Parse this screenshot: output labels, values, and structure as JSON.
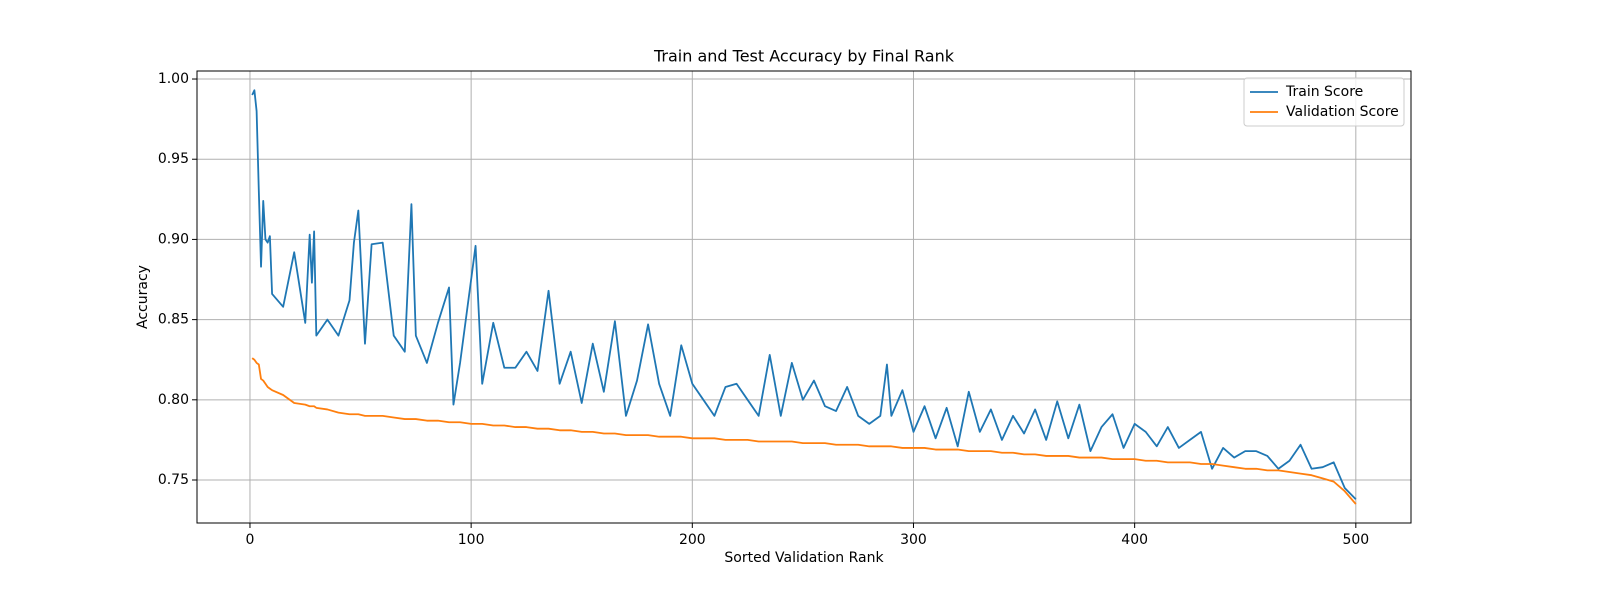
{
  "chart_data": {
    "type": "line",
    "title": "Train and Test Accuracy by Final Rank",
    "x_label": "Sorted Validation Rank",
    "y_label": "Accuracy",
    "x": [
      1,
      2,
      3,
      4,
      5,
      6,
      7,
      8,
      9,
      10,
      15,
      20,
      25,
      27,
      28,
      29,
      30,
      35,
      40,
      45,
      47,
      49,
      52,
      55,
      60,
      65,
      70,
      73,
      75,
      80,
      85,
      90,
      92,
      95,
      100,
      102,
      105,
      110,
      115,
      120,
      125,
      130,
      135,
      140,
      145,
      150,
      155,
      160,
      165,
      170,
      175,
      180,
      185,
      190,
      195,
      200,
      205,
      210,
      215,
      220,
      225,
      230,
      235,
      240,
      245,
      250,
      255,
      260,
      265,
      270,
      275,
      280,
      285,
      288,
      290,
      295,
      300,
      305,
      310,
      315,
      320,
      325,
      330,
      335,
      340,
      345,
      350,
      355,
      360,
      365,
      370,
      375,
      380,
      385,
      390,
      395,
      400,
      405,
      410,
      415,
      420,
      425,
      430,
      435,
      440,
      445,
      450,
      455,
      460,
      465,
      470,
      475,
      480,
      485,
      490,
      495,
      500
    ],
    "series": [
      {
        "name": "Train Score",
        "color": "#1f77b4",
        "values": [
          0.99,
          0.993,
          0.98,
          0.93,
          0.883,
          0.924,
          0.9,
          0.898,
          0.902,
          0.866,
          0.858,
          0.892,
          0.848,
          0.903,
          0.873,
          0.905,
          0.84,
          0.85,
          0.84,
          0.862,
          0.898,
          0.918,
          0.835,
          0.897,
          0.898,
          0.84,
          0.83,
          0.922,
          0.84,
          0.823,
          0.848,
          0.87,
          0.797,
          0.823,
          0.875,
          0.896,
          0.81,
          0.848,
          0.82,
          0.82,
          0.83,
          0.818,
          0.868,
          0.81,
          0.83,
          0.798,
          0.835,
          0.805,
          0.849,
          0.79,
          0.812,
          0.847,
          0.81,
          0.79,
          0.834,
          0.81,
          0.8,
          0.79,
          0.808,
          0.81,
          0.8,
          0.79,
          0.828,
          0.79,
          0.823,
          0.8,
          0.812,
          0.796,
          0.793,
          0.808,
          0.79,
          0.785,
          0.79,
          0.822,
          0.79,
          0.806,
          0.78,
          0.796,
          0.776,
          0.795,
          0.771,
          0.805,
          0.78,
          0.794,
          0.775,
          0.79,
          0.779,
          0.794,
          0.775,
          0.799,
          0.776,
          0.797,
          0.768,
          0.783,
          0.791,
          0.77,
          0.785,
          0.78,
          0.771,
          0.783,
          0.77,
          0.775,
          0.78,
          0.757,
          0.77,
          0.764,
          0.768,
          0.768,
          0.765,
          0.757,
          0.762,
          0.772,
          0.757,
          0.758,
          0.761,
          0.745,
          0.738
        ]
      },
      {
        "name": "Validation Score",
        "color": "#ff7f0e",
        "values": [
          0.826,
          0.825,
          0.823,
          0.822,
          0.813,
          0.812,
          0.81,
          0.808,
          0.807,
          0.806,
          0.803,
          0.798,
          0.797,
          0.796,
          0.796,
          0.796,
          0.795,
          0.794,
          0.792,
          0.791,
          0.791,
          0.791,
          0.79,
          0.79,
          0.79,
          0.789,
          0.788,
          0.788,
          0.788,
          0.787,
          0.787,
          0.786,
          0.786,
          0.786,
          0.785,
          0.785,
          0.785,
          0.784,
          0.784,
          0.783,
          0.783,
          0.782,
          0.782,
          0.781,
          0.781,
          0.78,
          0.78,
          0.779,
          0.779,
          0.778,
          0.778,
          0.778,
          0.777,
          0.777,
          0.777,
          0.776,
          0.776,
          0.776,
          0.775,
          0.775,
          0.775,
          0.774,
          0.774,
          0.774,
          0.774,
          0.773,
          0.773,
          0.773,
          0.772,
          0.772,
          0.772,
          0.771,
          0.771,
          0.771,
          0.771,
          0.77,
          0.77,
          0.77,
          0.769,
          0.769,
          0.769,
          0.768,
          0.768,
          0.768,
          0.767,
          0.767,
          0.766,
          0.766,
          0.765,
          0.765,
          0.765,
          0.764,
          0.764,
          0.764,
          0.763,
          0.763,
          0.763,
          0.762,
          0.762,
          0.761,
          0.761,
          0.761,
          0.76,
          0.76,
          0.759,
          0.758,
          0.757,
          0.757,
          0.756,
          0.756,
          0.755,
          0.754,
          0.753,
          0.751,
          0.749,
          0.743,
          0.735
        ]
      }
    ],
    "xlim": [
      -23.95,
      524.95
    ],
    "ylim": [
      0.7232,
      1.005
    ],
    "xticks": [
      0,
      100,
      200,
      300,
      400,
      500
    ],
    "yticks": [
      0.75,
      {
        "value": 0.8,
        "label": "0.80"
      },
      0.85,
      {
        "value": 0.9,
        "label": "0.90"
      },
      0.95,
      {
        "value": 1.0,
        "label": "1.00"
      }
    ],
    "grid": true,
    "legend": "upper right"
  }
}
